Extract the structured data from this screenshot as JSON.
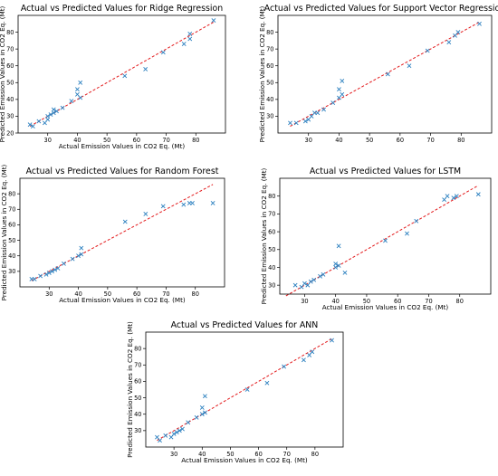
{
  "colors": {
    "marker": "#2a7fbf",
    "fit_line": "#e31a1c",
    "axes": "#000000"
  },
  "chart_data": [
    {
      "type": "scatter",
      "title": "Actual vs Predicted Values for Ridge Regression",
      "xlabel": "Actual Emission Values in CO2 Eq. (Mt)",
      "ylabel": "Predicted Emission Values in CO2 Eq. (Mt)",
      "xlim": [
        20,
        90
      ],
      "ylim": [
        20,
        90
      ],
      "xticks": [
        30,
        40,
        50,
        60,
        70,
        80
      ],
      "yticks": [
        20,
        30,
        40,
        50,
        60,
        70,
        80
      ],
      "marker": "x",
      "reference_line": [
        [
          24,
          24
        ],
        [
          86,
          86
        ]
      ],
      "points": [
        [
          24,
          25
        ],
        [
          25,
          24
        ],
        [
          27,
          27
        ],
        [
          29,
          26
        ],
        [
          30,
          28
        ],
        [
          30,
          30
        ],
        [
          31,
          31
        ],
        [
          32,
          32
        ],
        [
          32,
          34
        ],
        [
          33,
          33
        ],
        [
          35,
          35
        ],
        [
          38,
          39
        ],
        [
          40,
          43
        ],
        [
          40,
          46
        ],
        [
          41,
          41
        ],
        [
          41,
          50
        ],
        [
          56,
          54
        ],
        [
          63,
          58
        ],
        [
          69,
          68
        ],
        [
          76,
          73
        ],
        [
          78,
          76
        ],
        [
          78,
          79
        ],
        [
          86,
          87
        ]
      ]
    },
    {
      "type": "scatter",
      "title": "Actual vs Predicted Values for Support Vector Regression",
      "xlabel": "",
      "ylabel": "Predicted Emission Values in CO2 Eq. (Mt)",
      "xlim": [
        20,
        90
      ],
      "ylim": [
        20,
        90
      ],
      "xticks": [
        30,
        40,
        50,
        60,
        70,
        80
      ],
      "yticks": [
        30,
        40,
        50,
        60,
        70,
        80
      ],
      "marker": "x",
      "reference_line": [
        [
          24,
          24
        ],
        [
          86,
          86
        ]
      ],
      "points": [
        [
          24,
          26
        ],
        [
          26,
          26
        ],
        [
          29,
          27
        ],
        [
          30,
          28
        ],
        [
          31,
          30
        ],
        [
          32,
          32
        ],
        [
          33,
          32
        ],
        [
          35,
          34
        ],
        [
          38,
          38
        ],
        [
          40,
          41
        ],
        [
          40,
          46
        ],
        [
          41,
          51
        ],
        [
          41,
          43
        ],
        [
          56,
          55
        ],
        [
          63,
          60
        ],
        [
          69,
          69
        ],
        [
          76,
          74
        ],
        [
          78,
          78
        ],
        [
          79,
          80
        ],
        [
          86,
          85
        ]
      ]
    },
    {
      "type": "scatter",
      "title": "Actual vs Predicted Values for Random Forest",
      "xlabel": "Actual Emission Values in CO2 Eq. (Mt)",
      "ylabel": "Predicted Emission Values in CO2 Eq. (Mt)",
      "xlim": [
        20,
        90
      ],
      "ylim": [
        20,
        90
      ],
      "xticks": [
        30,
        40,
        50,
        60,
        70,
        80
      ],
      "yticks": [
        30,
        40,
        50,
        60,
        70,
        80
      ],
      "marker": "x",
      "reference_line": [
        [
          24,
          24
        ],
        [
          86,
          86
        ]
      ],
      "points": [
        [
          24,
          25
        ],
        [
          25,
          25
        ],
        [
          27,
          27
        ],
        [
          29,
          28
        ],
        [
          30,
          29
        ],
        [
          31,
          30
        ],
        [
          32,
          31
        ],
        [
          33,
          32
        ],
        [
          35,
          35
        ],
        [
          38,
          38
        ],
        [
          40,
          40
        ],
        [
          41,
          41
        ],
        [
          41,
          45
        ],
        [
          56,
          62
        ],
        [
          63,
          67
        ],
        [
          69,
          72
        ],
        [
          76,
          73
        ],
        [
          78,
          74
        ],
        [
          79,
          74
        ],
        [
          86,
          74
        ]
      ]
    },
    {
      "type": "scatter",
      "title": "Actual vs Predicted Values for LSTM",
      "xlabel": "Actual Emission Values in CO2 Eq. (Mt)",
      "ylabel": "Predicted Emission Values in CO2 Eq. (Mt)",
      "xlim": [
        22,
        90
      ],
      "ylim": [
        25,
        90
      ],
      "xticks": [
        30,
        40,
        50,
        60,
        70,
        80
      ],
      "yticks": [
        30,
        40,
        50,
        60,
        70,
        80
      ],
      "marker": "x",
      "reference_line": [
        [
          24,
          24
        ],
        [
          86,
          86
        ]
      ],
      "points": [
        [
          27,
          30
        ],
        [
          29,
          29
        ],
        [
          30,
          31
        ],
        [
          31,
          30
        ],
        [
          32,
          32
        ],
        [
          33,
          33
        ],
        [
          35,
          35
        ],
        [
          36,
          36
        ],
        [
          40,
          40
        ],
        [
          40,
          42
        ],
        [
          41,
          41
        ],
        [
          41,
          52
        ],
        [
          43,
          37
        ],
        [
          56,
          55
        ],
        [
          63,
          59
        ],
        [
          66,
          66
        ],
        [
          75,
          78
        ],
        [
          76,
          80
        ],
        [
          78,
          79
        ],
        [
          79,
          80
        ],
        [
          86,
          81
        ]
      ]
    },
    {
      "type": "scatter",
      "title": "Actual vs Predicted Values for ANN",
      "xlabel": "Actual Emission Values in CO2 Eq. (Mt)",
      "ylabel": "Predicted Emission Values in CO2 Eq. (Mt)",
      "xlim": [
        20,
        90
      ],
      "ylim": [
        20,
        90
      ],
      "xticks": [
        30,
        40,
        50,
        60,
        70,
        80
      ],
      "yticks": [
        30,
        40,
        50,
        60,
        70,
        80
      ],
      "marker": "x",
      "reference_line": [
        [
          24,
          24
        ],
        [
          86,
          86
        ]
      ],
      "points": [
        [
          24,
          26
        ],
        [
          25,
          24
        ],
        [
          27,
          27
        ],
        [
          29,
          26
        ],
        [
          30,
          28
        ],
        [
          31,
          29
        ],
        [
          32,
          30
        ],
        [
          33,
          31
        ],
        [
          35,
          35
        ],
        [
          38,
          38
        ],
        [
          40,
          40
        ],
        [
          40,
          44
        ],
        [
          41,
          51
        ],
        [
          41,
          41
        ],
        [
          56,
          55
        ],
        [
          63,
          59
        ],
        [
          69,
          69
        ],
        [
          76,
          73
        ],
        [
          78,
          76
        ],
        [
          79,
          78
        ],
        [
          86,
          85
        ]
      ]
    }
  ]
}
